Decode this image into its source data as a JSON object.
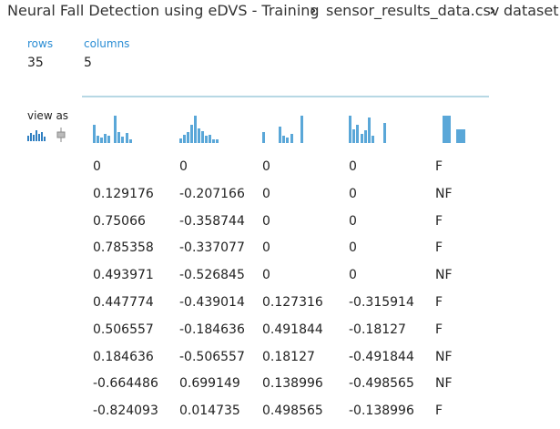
{
  "breadcrumb": [
    "Neural Fall Detection using eDVS - Training",
    "sensor_results_data.csv",
    "dataset"
  ],
  "stats": [
    {
      "label": "rows",
      "value": "35"
    },
    {
      "label": "columns",
      "value": "5"
    }
  ],
  "view_as": "view as",
  "table": {
    "rows": [
      [
        "0",
        "0",
        "0",
        "0",
        "F"
      ],
      [
        "0.129176",
        "-0.207166",
        "0",
        "0",
        "NF"
      ],
      [
        "0.75066",
        "-0.358744",
        "0",
        "0",
        "F"
      ],
      [
        "0.785358",
        "-0.337077",
        "0",
        "0",
        "F"
      ],
      [
        "0.493971",
        "-0.526845",
        "0",
        "0",
        "NF"
      ],
      [
        "0.447774",
        "-0.439014",
        "0.127316",
        "-0.315914",
        "F"
      ],
      [
        "0.506557",
        "-0.184636",
        "0.491844",
        "-0.18127",
        "F"
      ],
      [
        "0.184636",
        "-0.506557",
        "0.18127",
        "-0.491844",
        "NF"
      ],
      [
        "-0.664486",
        "0.699149",
        "0.138996",
        "-0.498565",
        "NF"
      ],
      [
        "-0.824093",
        "0.014735",
        "0.498565",
        "-0.138996",
        "F"
      ]
    ]
  }
}
